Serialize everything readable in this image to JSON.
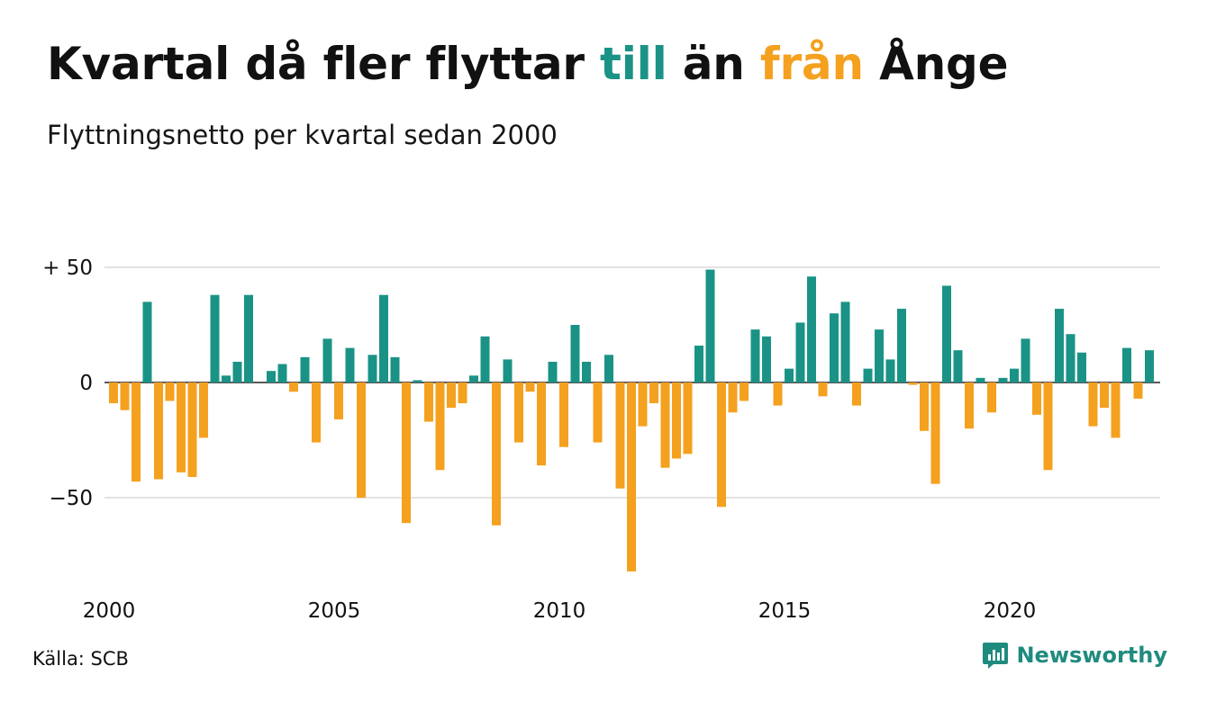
{
  "title": {
    "part1": "Kvartal då fler flyttar ",
    "till": "till",
    "part2": " än ",
    "fran": "från",
    "part3": " Ånge"
  },
  "subtitle": "Flyttningsnetto per kvartal sedan 2000",
  "source": "Källa: SCB",
  "brand": {
    "name": "Newsworthy",
    "logo_icon": "newsworthy-logo-icon"
  },
  "colors": {
    "positive": "#1a9386",
    "negative": "#f4a11f",
    "grid": "#e3e3e3",
    "brand": "#1f8b7e"
  },
  "chart_data": {
    "type": "bar",
    "title": "Kvartal då fler flyttar till än från Ånge",
    "subtitle": "Flyttningsnetto per kvartal sedan 2000",
    "xlabel": "",
    "ylabel": "",
    "ylim": [
      -85,
      55
    ],
    "yticks": [
      {
        "value": 50,
        "label": "+ 50"
      },
      {
        "value": 0,
        "label": "0"
      },
      {
        "value": -50,
        "label": "−50"
      }
    ],
    "xticks": [
      {
        "year": 2000,
        "label": "2000"
      },
      {
        "year": 2005,
        "label": "2005"
      },
      {
        "year": 2010,
        "label": "2010"
      },
      {
        "year": 2015,
        "label": "2015"
      },
      {
        "year": 2020,
        "label": "2020"
      }
    ],
    "grid": true,
    "legend": "none",
    "start_year": 2000,
    "start_quarter": 1,
    "series": [
      {
        "values": [
          -9,
          -12,
          -43,
          35,
          -42,
          -8,
          -39,
          -41,
          -24,
          38,
          3,
          9,
          38,
          0,
          5,
          8,
          -4,
          11,
          -26,
          19,
          -16,
          15,
          -50,
          12,
          38,
          11,
          -61,
          1,
          -17,
          -38,
          -11,
          -9,
          3,
          20,
          -62,
          10,
          -26,
          -4,
          -36,
          9,
          -28,
          25,
          9,
          -26,
          12,
          -46,
          -82,
          -19,
          -9,
          -37,
          -33,
          -31,
          16,
          49,
          -54,
          -13,
          -8,
          23,
          20,
          -10,
          6,
          26,
          46,
          -6,
          30,
          35,
          -10,
          6,
          23,
          10,
          32,
          -1,
          -21,
          -44,
          42,
          14,
          -20,
          2,
          -13,
          2,
          6,
          19,
          -14,
          -38,
          32,
          21,
          13,
          -19,
          -11,
          -24,
          15,
          -7,
          14
        ]
      }
    ]
  }
}
